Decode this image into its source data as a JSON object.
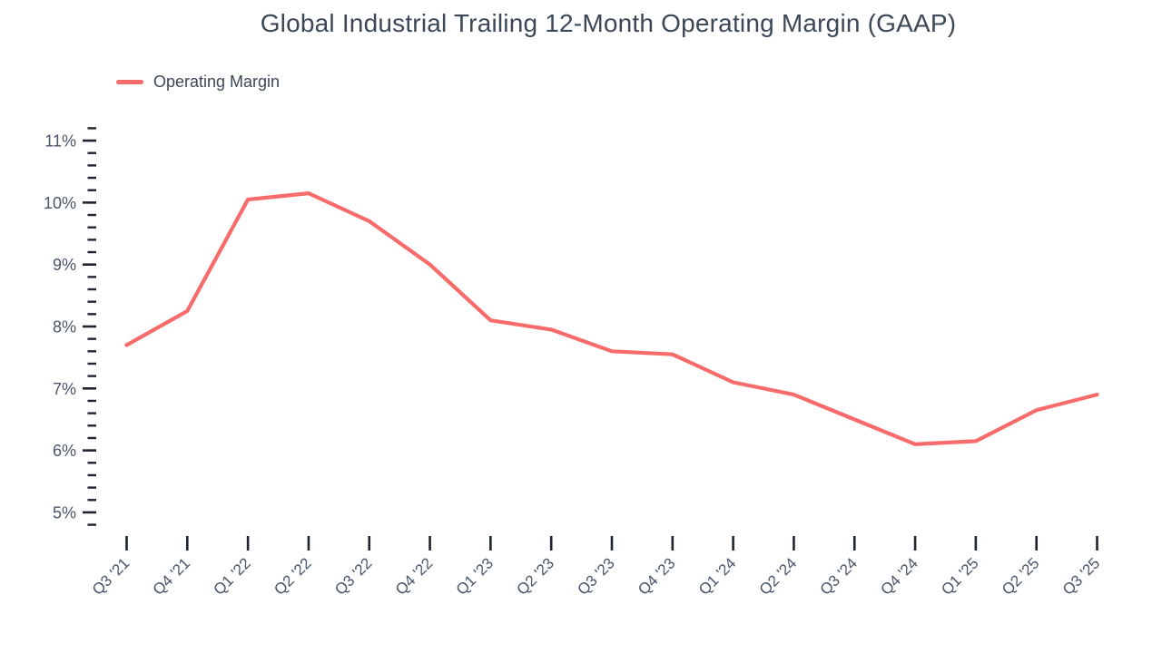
{
  "chart": {
    "title": "Global Industrial Trailing 12-Month Operating Margin (GAAP)",
    "legend_label": "Operating Margin"
  },
  "chart_data": {
    "type": "line",
    "title": "Global Industrial Trailing 12-Month Operating Margin (GAAP)",
    "legend_entries": [
      "Operating Margin"
    ],
    "legend_position": "top-left",
    "grid": false,
    "categories": [
      "Q3 '21",
      "Q4 '21",
      "Q1 '22",
      "Q2 '22",
      "Q3 '22",
      "Q4 '22",
      "Q1 '23",
      "Q2 '23",
      "Q3 '23",
      "Q4 '23",
      "Q1 '24",
      "Q2 '24",
      "Q3 '24",
      "Q4 '24",
      "Q1 '25",
      "Q2 '25",
      "Q3 '25"
    ],
    "series": [
      {
        "name": "Operating Margin",
        "color": "#F86B6B",
        "values": [
          7.7,
          8.25,
          10.05,
          10.15,
          9.7,
          9.0,
          8.1,
          7.95,
          7.6,
          7.55,
          7.1,
          6.9,
          6.5,
          6.1,
          6.15,
          6.65,
          6.9
        ]
      }
    ],
    "xlabel": "",
    "ylabel": "",
    "ylim": [
      4.8,
      11.2
    ],
    "y_major_ticks": [
      5,
      6,
      7,
      8,
      9,
      10,
      11
    ],
    "y_major_tick_labels": [
      "5%",
      "6%",
      "7%",
      "8%",
      "9%",
      "10%",
      "11%"
    ],
    "y_minor_tick_step": 0.2,
    "x_tick_rotation": -45
  },
  "colors": {
    "line": "#F86B6B",
    "title_text": "#3C4858",
    "axis_label_text": "#4A5568",
    "tick_mark": "#1F2430",
    "background": "#FFFFFF"
  }
}
